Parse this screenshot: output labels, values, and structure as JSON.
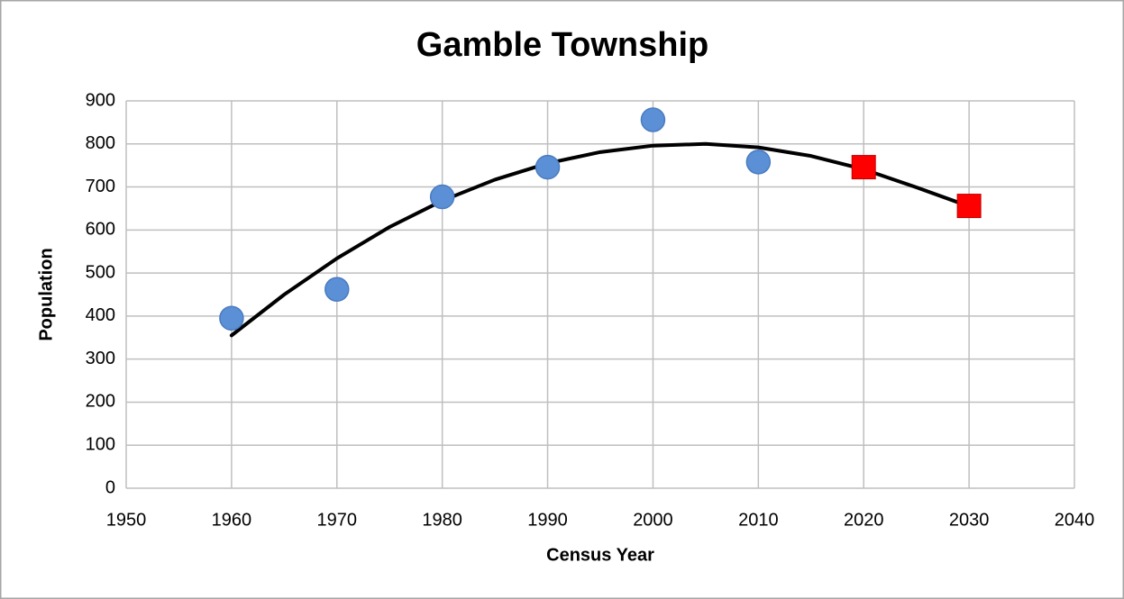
{
  "chart_data": {
    "type": "scatter",
    "title": "Gamble Township",
    "x_label": "Census Year",
    "y_label": "Population",
    "xlim": [
      1950,
      2040
    ],
    "xticks": [
      1950,
      1960,
      1970,
      1980,
      1990,
      2000,
      2010,
      2020,
      2030,
      2040
    ],
    "ylim": [
      0,
      900
    ],
    "yticks": [
      0,
      100,
      200,
      300,
      400,
      500,
      600,
      700,
      800,
      900
    ],
    "grid": true,
    "series": [
      {
        "color": "#5b8fd6",
        "marker": "circle",
        "x": [
          1960,
          1970,
          1980,
          1990,
          2000,
          2010
        ],
        "values": [
          395,
          462,
          677,
          746,
          856,
          758
        ]
      },
      {
        "color": "#ff0000",
        "marker": "square",
        "x": [
          2020,
          2030
        ],
        "values": [
          746,
          656
        ]
      },
      {
        "color": "#000000",
        "marker": "line",
        "x": [
          1960,
          1965,
          1970,
          1975,
          1980,
          1985,
          1990,
          1995,
          2000,
          2005,
          2010,
          2015,
          2020,
          2025,
          2030
        ],
        "values": [
          355,
          450,
          534,
          607,
          668,
          717,
          755,
          781,
          796,
          800,
          792,
          772,
          741,
          699,
          655
        ]
      }
    ]
  }
}
